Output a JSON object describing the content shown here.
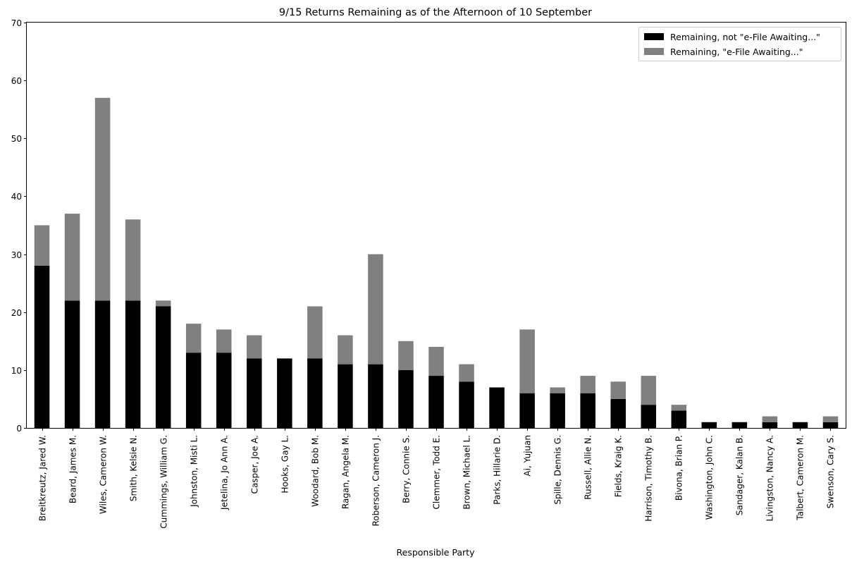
{
  "chart_data": {
    "type": "bar",
    "stacked": true,
    "title": "9/15 Returns Remaining as of the Afternoon of 10 September",
    "xlabel": "Responsible Party",
    "ylabel": "",
    "ylim": [
      0,
      70
    ],
    "yticks": [
      0,
      10,
      20,
      30,
      40,
      50,
      60,
      70
    ],
    "grid": false,
    "legend_position": "top-right",
    "categories": [
      "Breitkreutz, Jared W.",
      "Beard, James M.",
      "Wiles, Cameron W.",
      "Smith, Kelsie N.",
      "Cummings, William G.",
      "Johnston, Misti L.",
      "Jetelina, Jo Ann A.",
      "Casper, Joe A.",
      "Hooks, Gay L.",
      "Woodard, Bob M.",
      "Ragan, Angela M.",
      "Roberson, Cameron J.",
      "Berry, Connie S.",
      "Clemmer, Todd E.",
      "Brown, Michael L.",
      "Parks, Hillarie D.",
      "Ai, Yujuan",
      "Spille, Dennis G.",
      "Russell, Allie N.",
      "Fields, Kraig K.",
      "Harrison, Timothy B.",
      "Bivona, Brian P.",
      "Washington, John C.",
      "Sandager, Kalan B.",
      "Livingston, Nancy A.",
      "Talbert, Cameron M.",
      "Swenson, Cary S."
    ],
    "series": [
      {
        "name": "Remaining, not \"e-File Awaiting...\"",
        "color": "#000000",
        "values": [
          28,
          22,
          22,
          22,
          21,
          13,
          13,
          12,
          12,
          12,
          11,
          11,
          10,
          9,
          8,
          7,
          6,
          6,
          6,
          5,
          4,
          3,
          1,
          1,
          1,
          1,
          1
        ]
      },
      {
        "name": "Remaining, \"e-File Awaiting...\"",
        "color": "#808080",
        "values": [
          7,
          15,
          35,
          14,
          1,
          5,
          4,
          4,
          0,
          9,
          5,
          19,
          5,
          5,
          3,
          0,
          11,
          1,
          3,
          3,
          5,
          1,
          0,
          0,
          1,
          0,
          1
        ]
      }
    ]
  }
}
